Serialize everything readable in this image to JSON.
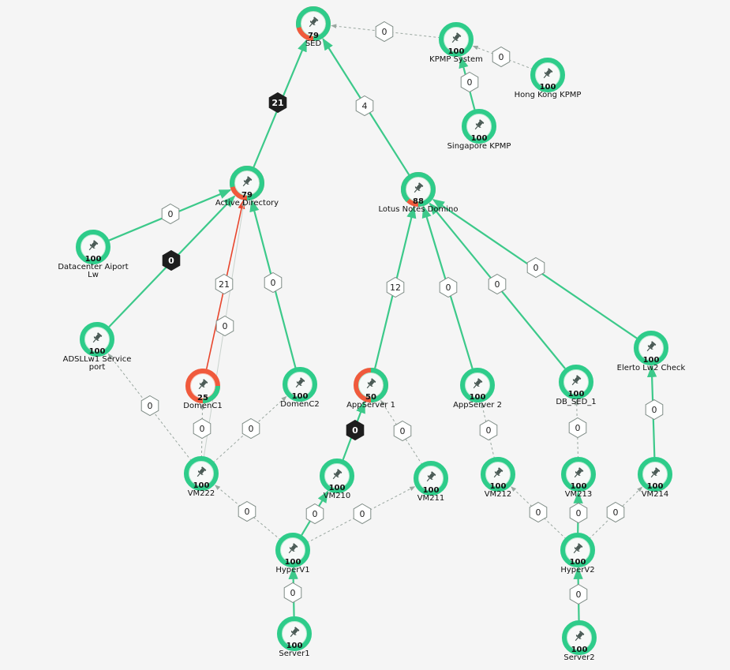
{
  "colors": {
    "ok": "#2ecc8a",
    "ok_light": "#b9ecd3",
    "alert": "#f05a3c",
    "alert_light": "#f8c2b6",
    "edge_solid": "#3cc98a",
    "edge_alert": "#e8452c",
    "edge_dashed": "#9aa7a0",
    "hex_dark": "#1e1e1e",
    "hex_light_fill": "#ffffff",
    "hex_stroke": "#7f8c86",
    "icon": "#4a5a55"
  },
  "icon_name": "pin-icon",
  "nodes": [
    {
      "id": "sed",
      "value": "79",
      "label": "SED",
      "status": 0.79
    },
    {
      "id": "kpmp",
      "value": "100",
      "label": "KPMP System",
      "status": 1.0
    },
    {
      "id": "hongkong",
      "value": "100",
      "label": "Hong Kong KPMP",
      "status": 1.0
    },
    {
      "id": "singapore",
      "value": "100",
      "label": "Singapore KPMP",
      "status": 1.0
    },
    {
      "id": "ad",
      "value": "79",
      "label": "Active Directory",
      "status": 0.79
    },
    {
      "id": "lotus",
      "value": "88",
      "label": "Lotus Notes Domino",
      "status": 0.88
    },
    {
      "id": "dcairport",
      "value": "100",
      "label": "Datacenter Aiport Lw",
      "status": 1.0
    },
    {
      "id": "adsl",
      "value": "100",
      "label": "ADSLLw1 Service port",
      "status": 1.0
    },
    {
      "id": "domenc1",
      "value": "25",
      "label": "DomenC1",
      "status": 0.25
    },
    {
      "id": "domenc2",
      "value": "100",
      "label": "DomenC2",
      "status": 1.0
    },
    {
      "id": "app1",
      "value": "50",
      "label": "AppServer 1",
      "status": 0.5
    },
    {
      "id": "app2",
      "value": "100",
      "label": "AppServer 2",
      "status": 1.0
    },
    {
      "id": "dbsed",
      "value": "100",
      "label": "DB_SED_1",
      "status": 1.0
    },
    {
      "id": "elerto",
      "value": "100",
      "label": "Elerto Lw2 Check",
      "status": 1.0
    },
    {
      "id": "vm222",
      "value": "100",
      "label": "VM222",
      "status": 1.0
    },
    {
      "id": "vm210",
      "value": "100",
      "label": "VM210",
      "status": 1.0
    },
    {
      "id": "vm211",
      "value": "100",
      "label": "VM211",
      "status": 1.0
    },
    {
      "id": "vm212",
      "value": "100",
      "label": "VM212",
      "status": 1.0
    },
    {
      "id": "vm213",
      "value": "100",
      "label": "VM213",
      "status": 1.0
    },
    {
      "id": "vm214",
      "value": "100",
      "label": "VM214",
      "status": 1.0
    },
    {
      "id": "hyperv1",
      "value": "100",
      "label": "HyperV1",
      "status": 1.0
    },
    {
      "id": "hyperv2",
      "value": "100",
      "label": "HyperV2",
      "status": 1.0
    },
    {
      "id": "server1",
      "value": "100",
      "label": "Server1",
      "status": 1.0
    },
    {
      "id": "server2",
      "value": "100",
      "label": "Server2",
      "status": 1.0
    }
  ],
  "edges": [
    {
      "from": "kpmp",
      "to": "sed",
      "style": "dashed",
      "weight": "0",
      "dark": false
    },
    {
      "from": "hongkong",
      "to": "kpmp",
      "style": "dashed",
      "weight": "0",
      "dark": false
    },
    {
      "from": "singapore",
      "to": "kpmp",
      "style": "solid",
      "weight": "0",
      "dark": false
    },
    {
      "from": "ad",
      "to": "sed",
      "style": "solid",
      "weight": "21",
      "dark": true
    },
    {
      "from": "lotus",
      "to": "sed",
      "style": "solid",
      "weight": "4",
      "dark": false
    },
    {
      "from": "dcairport",
      "to": "ad",
      "style": "solid",
      "weight": "0",
      "dark": false
    },
    {
      "from": "adsl",
      "to": "ad",
      "style": "solid",
      "weight": "0",
      "dark": true
    },
    {
      "from": "domenc1",
      "to": "ad",
      "style": "alert",
      "weight": "21",
      "dark": false
    },
    {
      "from": "vm222",
      "to": "ad",
      "style": "thin",
      "weight": "0",
      "dark": false
    },
    {
      "from": "domenc2",
      "to": "ad",
      "style": "solid",
      "weight": "0",
      "dark": false
    },
    {
      "from": "app1",
      "to": "lotus",
      "style": "solid",
      "weight": "12",
      "dark": false
    },
    {
      "from": "app2",
      "to": "lotus",
      "style": "solid",
      "weight": "0",
      "dark": false
    },
    {
      "from": "dbsed",
      "to": "lotus",
      "style": "solid",
      "weight": "0",
      "dark": false
    },
    {
      "from": "elerto",
      "to": "lotus",
      "style": "solid",
      "weight": "0",
      "dark": false
    },
    {
      "from": "vm222",
      "to": "adsl",
      "style": "dashed",
      "weight": "0",
      "dark": false
    },
    {
      "from": "vm222",
      "to": "domenc1",
      "style": "dashed",
      "weight": "0",
      "dark": false
    },
    {
      "from": "vm222",
      "to": "domenc2",
      "style": "dashed",
      "weight": "0",
      "dark": false
    },
    {
      "from": "vm210",
      "to": "app1",
      "style": "solid",
      "weight": "0",
      "dark": true
    },
    {
      "from": "vm211",
      "to": "app1",
      "style": "dashed",
      "weight": "0",
      "dark": false
    },
    {
      "from": "vm212",
      "to": "app2",
      "style": "dashed",
      "weight": "0",
      "dark": false
    },
    {
      "from": "vm213",
      "to": "dbsed",
      "style": "dashed",
      "weight": "0",
      "dark": false
    },
    {
      "from": "vm214",
      "to": "elerto",
      "style": "solid",
      "weight": "0",
      "dark": false
    },
    {
      "from": "hyperv1",
      "to": "vm222",
      "style": "dashed",
      "weight": "0",
      "dark": false
    },
    {
      "from": "hyperv1",
      "to": "vm210",
      "style": "solid",
      "weight": "0",
      "dark": false
    },
    {
      "from": "hyperv1",
      "to": "vm211",
      "style": "dashed",
      "weight": "0",
      "dark": false
    },
    {
      "from": "server1",
      "to": "hyperv1",
      "style": "solid",
      "weight": "0",
      "dark": false
    },
    {
      "from": "hyperv2",
      "to": "vm212",
      "style": "dashed",
      "weight": "0",
      "dark": false
    },
    {
      "from": "hyperv2",
      "to": "vm213",
      "style": "solid",
      "weight": "0",
      "dark": false
    },
    {
      "from": "hyperv2",
      "to": "vm214",
      "style": "dashed",
      "weight": "0",
      "dark": false
    },
    {
      "from": "server2",
      "to": "hyperv2",
      "style": "solid",
      "weight": "0",
      "dark": false
    }
  ]
}
